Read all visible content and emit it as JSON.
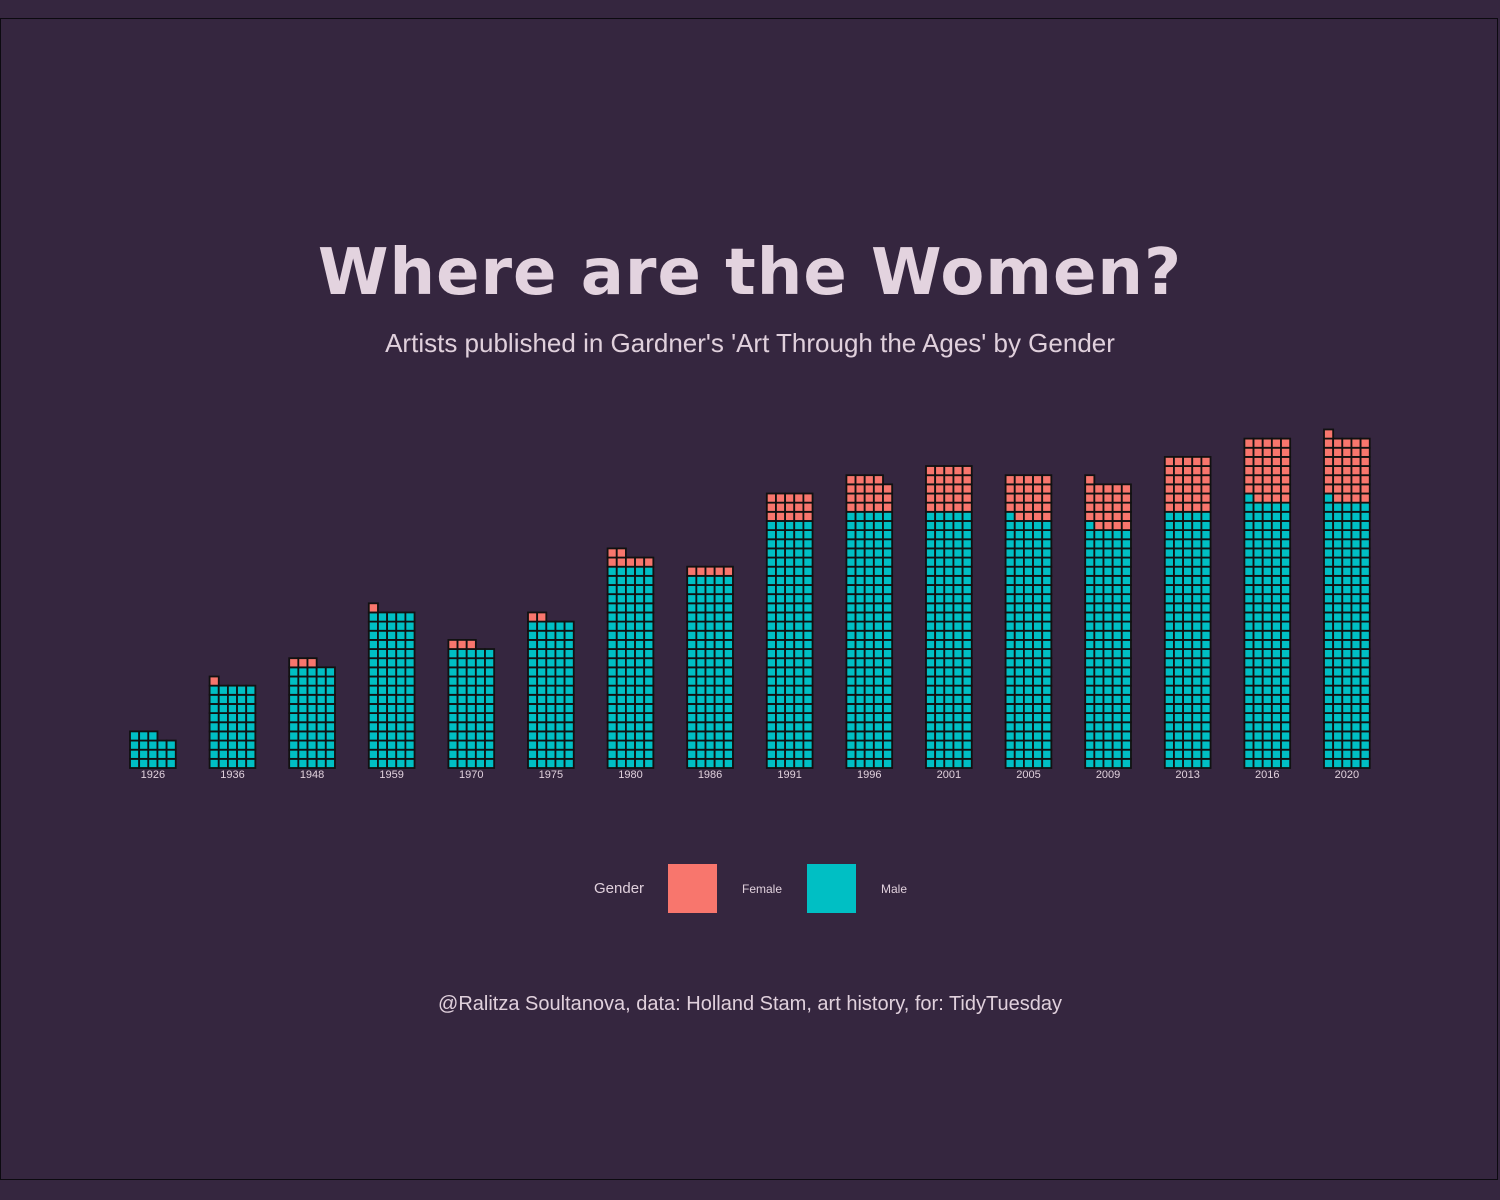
{
  "title": "Where are the Women?",
  "subtitle": "Artists published in Gardner's 'Art Through the Ages' by Gender",
  "caption": "@Ralitza Soultanova, data: Holland Stam, art history, for: TidyTuesday",
  "legend": {
    "title": "Gender",
    "items": [
      {
        "label": "Female",
        "color": "#f8766d"
      },
      {
        "label": "Male",
        "color": "#00bfc4"
      }
    ]
  },
  "chart_data": {
    "type": "waffle",
    "units_per_row": 5,
    "legend_position": "bottom",
    "grid": false,
    "categories": [
      "1926",
      "1936",
      "1948",
      "1959",
      "1970",
      "1975",
      "1980",
      "1986",
      "1991",
      "1996",
      "2001",
      "2005",
      "2009",
      "2013",
      "2016",
      "2020"
    ],
    "series": [
      {
        "name": "Male",
        "color": "#00bfc4",
        "values": [
          18,
          45,
          55,
          85,
          65,
          80,
          110,
          105,
          135,
          140,
          140,
          136,
          131,
          140,
          146,
          146
        ]
      },
      {
        "name": "Female",
        "color": "#f8766d",
        "values": [
          0,
          1,
          3,
          1,
          3,
          2,
          7,
          5,
          15,
          19,
          25,
          24,
          25,
          30,
          34,
          35
        ]
      }
    ]
  }
}
